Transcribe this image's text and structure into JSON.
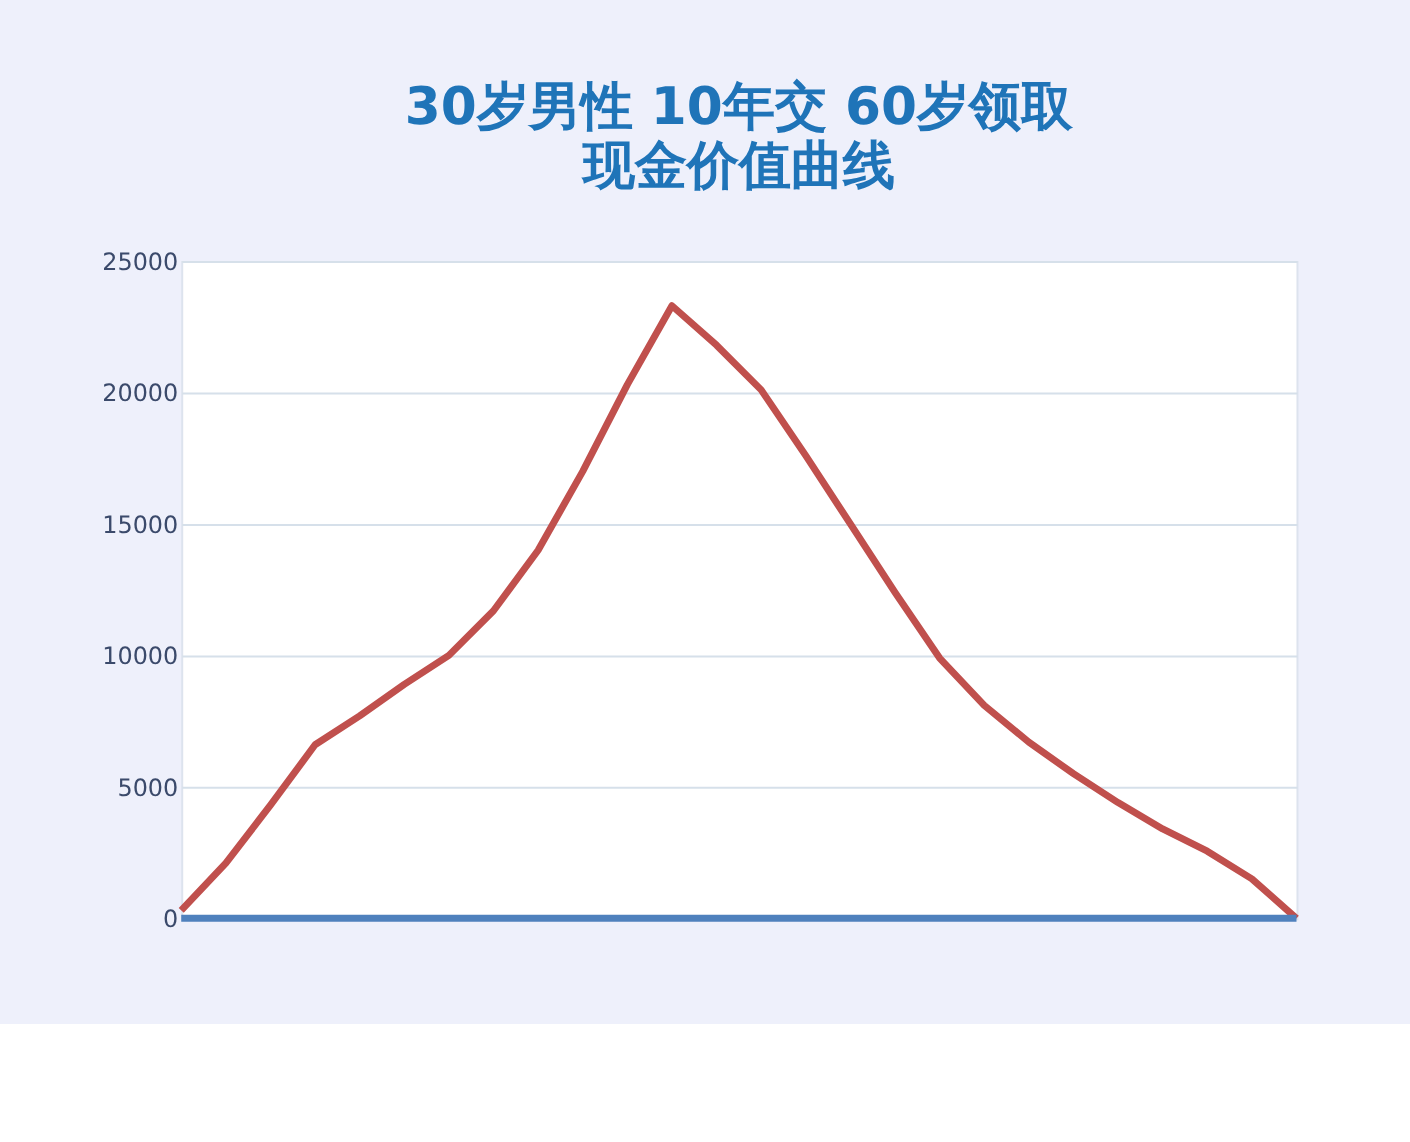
{
  "chart_data": {
    "type": "line",
    "title": "30岁男性 10年交 60岁领取",
    "subtitle": "现金价值曲线",
    "categories": [
      null,
      null,
      null,
      null,
      null,
      null,
      null,
      null,
      null,
      null,
      null,
      null,
      null,
      null,
      null,
      null,
      null,
      null,
      null,
      null,
      null,
      null,
      null,
      null,
      null,
      null
    ],
    "series": [
      {
        "color": "#c0504d",
        "values": [
          300,
          2100,
          4300,
          6600,
          7700,
          8900,
          10000,
          11700,
          14000,
          17000,
          20300,
          23300,
          21800,
          20100,
          17600,
          15000,
          12400,
          9900,
          8100,
          6700,
          5500,
          4400,
          3400,
          2550,
          1500,
          0
        ]
      },
      {
        "color": "#4f81bd",
        "values": [
          0,
          0,
          0,
          0,
          0,
          0,
          0,
          0,
          0,
          0,
          0,
          0,
          0,
          0,
          0,
          0,
          0,
          0,
          0,
          0,
          0,
          0,
          0,
          0,
          0,
          0
        ]
      }
    ],
    "ylim": [
      0,
      25000
    ],
    "yticks": [
      0,
      5000,
      10000,
      15000,
      20000,
      25000
    ],
    "grid": "y",
    "legend": false,
    "marker": "none",
    "line_style": "solid"
  }
}
